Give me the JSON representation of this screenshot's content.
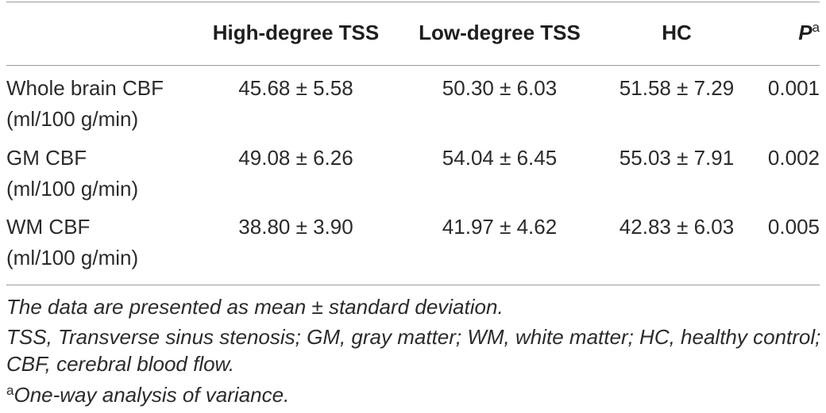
{
  "table": {
    "headers": {
      "high": "High-degree TSS",
      "low": "Low-degree TSS",
      "hc": "HC",
      "p": "P",
      "p_sup": "a"
    },
    "rows": [
      {
        "label_line1": "Whole brain CBF",
        "label_line2": "(ml/100 g/min)",
        "high": "45.68 ± 5.58",
        "low": "50.30 ± 6.03",
        "hc": "51.58 ± 7.29",
        "p": "0.001"
      },
      {
        "label_line1": "GM CBF",
        "label_line2": "(ml/100 g/min)",
        "high": "49.08 ± 6.26",
        "low": "54.04 ± 6.45",
        "hc": "55.03 ± 7.91",
        "p": "0.002"
      },
      {
        "label_line1": "WM CBF",
        "label_line2": "(ml/100 g/min)",
        "high": "38.80 ± 3.90",
        "low": "41.97 ± 4.62",
        "hc": "42.83 ± 6.03",
        "p": "0.005"
      }
    ]
  },
  "footnotes": {
    "note1": "The data are presented as mean ± standard deviation.",
    "note2": "TSS, Transverse sinus stenosis; GM, gray matter; WM, white matter; HC, healthy control; CBF, cerebral blood flow.",
    "note3_sup": "a",
    "note3": "One-way analysis of variance."
  }
}
